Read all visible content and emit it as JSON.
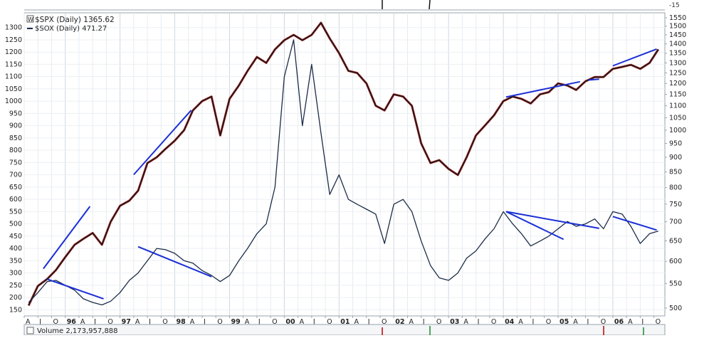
{
  "chart_data": {
    "type": "line",
    "legend": {
      "placement": "top-left",
      "entries": [
        {
          "marker": "W",
          "text": "$SPX (Daily) 1365.62",
          "color": "#c00000"
        },
        {
          "marker": "—",
          "text": "$SOX (Daily) 471.27",
          "color": "#1c2c48"
        }
      ]
    },
    "top_panel_tick": "-15",
    "volume_label": "Volume 2,173,957,888",
    "x_axis": {
      "months": [
        "A",
        "J",
        "O",
        "96",
        "A",
        "J",
        "O",
        "97",
        "A",
        "J",
        "O",
        "98",
        "A",
        "J",
        "O",
        "99",
        "A",
        "J",
        "O",
        "00",
        "A",
        "J",
        "O",
        "01",
        "A",
        "J",
        "O",
        "02",
        "A",
        "J",
        "O",
        "03",
        "A",
        "J",
        "O",
        "04",
        "A",
        "J",
        "O",
        "05",
        "A",
        "J",
        "O",
        "06",
        "A",
        "J",
        "O"
      ],
      "year_labels": [
        "96",
        "97",
        "98",
        "99",
        "00",
        "01",
        "02",
        "03",
        "04",
        "05",
        "06"
      ]
    },
    "y_left": {
      "label": "$SOX",
      "scale": "linear",
      "range": [
        125,
        1360
      ],
      "ticks": [
        150,
        200,
        250,
        300,
        350,
        400,
        450,
        500,
        550,
        600,
        650,
        700,
        750,
        800,
        850,
        900,
        950,
        1000,
        1050,
        1100,
        1150,
        1200,
        1250,
        1300
      ]
    },
    "y_right": {
      "label": "$SPX",
      "scale": "log",
      "range": [
        485,
        1580
      ],
      "ticks": [
        500,
        550,
        600,
        650,
        700,
        750,
        800,
        850,
        900,
        950,
        1000,
        1050,
        1100,
        1150,
        1200,
        1250,
        1300,
        1350,
        1400,
        1450,
        1500,
        1550
      ]
    },
    "series": [
      {
        "name": "$SPX (Daily)",
        "axis": "right",
        "color": "#1a1a1a",
        "x": [
          1995.33,
          1995.5,
          1995.67,
          1995.83,
          1996.0,
          1996.17,
          1996.33,
          1996.5,
          1996.67,
          1996.83,
          1997.0,
          1997.17,
          1997.33,
          1997.5,
          1997.67,
          1997.83,
          1998.0,
          1998.17,
          1998.33,
          1998.5,
          1998.67,
          1998.83,
          1999.0,
          1999.17,
          1999.33,
          1999.5,
          1999.67,
          1999.83,
          2000.0,
          2000.17,
          2000.33,
          2000.5,
          2000.67,
          2000.83,
          2001.0,
          2001.17,
          2001.33,
          2001.5,
          2001.67,
          2001.83,
          2002.0,
          2002.17,
          2002.33,
          2002.5,
          2002.67,
          2002.83,
          2003.0,
          2003.17,
          2003.33,
          2003.5,
          2003.67,
          2003.83,
          2004.0,
          2004.17,
          2004.33,
          2004.5,
          2004.67,
          2004.83,
          2005.0,
          2005.17,
          2005.33,
          2005.5,
          2005.67,
          2005.83,
          2006.0,
          2006.17,
          2006.33,
          2006.5,
          2006.67,
          2006.83
        ],
        "y": [
          505,
          545,
          560,
          580,
          610,
          640,
          655,
          670,
          640,
          700,
          745,
          760,
          790,
          880,
          900,
          930,
          960,
          1000,
          1080,
          1120,
          1140,
          980,
          1130,
          1190,
          1260,
          1330,
          1300,
          1370,
          1420,
          1450,
          1420,
          1450,
          1520,
          1430,
          1350,
          1260,
          1250,
          1200,
          1100,
          1080,
          1150,
          1140,
          1100,
          950,
          880,
          890,
          860,
          840,
          900,
          980,
          1020,
          1060,
          1120,
          1140,
          1130,
          1110,
          1150,
          1160,
          1200,
          1190,
          1170,
          1210,
          1230,
          1230,
          1270,
          1280,
          1290,
          1270,
          1300,
          1370
        ]
      },
      {
        "name": "$SOX (Daily)",
        "axis": "left",
        "color": "#1c2c48",
        "x": [
          1995.33,
          1995.5,
          1995.67,
          1995.83,
          1996.0,
          1996.17,
          1996.33,
          1996.5,
          1996.67,
          1996.83,
          1997.0,
          1997.17,
          1997.33,
          1997.5,
          1997.67,
          1997.83,
          1998.0,
          1998.17,
          1998.33,
          1998.5,
          1998.67,
          1998.83,
          1999.0,
          1999.17,
          1999.33,
          1999.5,
          1999.67,
          1999.83,
          2000.0,
          2000.17,
          2000.33,
          2000.5,
          2000.67,
          2000.83,
          2001.0,
          2001.17,
          2001.33,
          2001.5,
          2001.67,
          2001.83,
          2002.0,
          2002.17,
          2002.33,
          2002.5,
          2002.67,
          2002.83,
          2003.0,
          2003.17,
          2003.33,
          2003.5,
          2003.67,
          2003.83,
          2004.0,
          2004.17,
          2004.33,
          2004.5,
          2004.67,
          2004.83,
          2005.0,
          2005.17,
          2005.33,
          2005.5,
          2005.67,
          2005.83,
          2006.0,
          2006.17,
          2006.33,
          2006.5,
          2006.67,
          2006.83
        ],
        "y": [
          180,
          220,
          265,
          270,
          250,
          230,
          195,
          180,
          170,
          185,
          220,
          270,
          300,
          350,
          400,
          395,
          380,
          350,
          340,
          310,
          290,
          265,
          290,
          350,
          400,
          460,
          500,
          650,
          1100,
          1250,
          900,
          1150,
          870,
          620,
          700,
          600,
          580,
          560,
          540,
          420,
          580,
          600,
          550,
          430,
          330,
          280,
          270,
          300,
          360,
          390,
          440,
          480,
          550,
          500,
          460,
          410,
          430,
          450,
          480,
          510,
          490,
          500,
          520,
          480,
          550,
          540,
          490,
          420,
          460,
          471
        ]
      }
    ],
    "trendlines": [
      {
        "axis": "right",
        "color": "#1a2fd6",
        "x": [
          1995.6,
          1996.45
        ],
        "y": [
          583,
          743
        ]
      },
      {
        "axis": "right",
        "color": "#1a2fd6",
        "x": [
          1997.25,
          1998.3
        ],
        "y": [
          841,
          1081
        ]
      },
      {
        "axis": "right",
        "color": "#1a2fd6",
        "x": [
          2004.05,
          2005.4
        ],
        "y": [
          1138,
          1208
        ]
      },
      {
        "axis": "right",
        "color": "#1a2fd6",
        "x": [
          2005.55,
          2005.75
        ],
        "y": [
          1216,
          1220
        ]
      },
      {
        "axis": "right",
        "color": "#1a2fd6",
        "x": [
          2006.0,
          2006.8
        ],
        "y": [
          1285,
          1372
        ]
      },
      {
        "axis": "left",
        "color": "#1a2fd6",
        "x": [
          1995.67,
          1996.7
        ],
        "y": [
          275,
          195
        ]
      },
      {
        "axis": "left",
        "color": "#1a2fd6",
        "x": [
          1997.33,
          1998.67
        ],
        "y": [
          407,
          285
        ]
      },
      {
        "axis": "left",
        "color": "#1a2fd6",
        "x": [
          2004.05,
          2005.1
        ],
        "y": [
          550,
          437
        ]
      },
      {
        "axis": "left",
        "color": "#1a2fd6",
        "x": [
          2004.05,
          2005.75
        ],
        "y": [
          550,
          482
        ]
      },
      {
        "axis": "left",
        "color": "#1a2fd6",
        "x": [
          2006.0,
          2006.8
        ],
        "y": [
          530,
          475
        ]
      }
    ],
    "grid": true
  }
}
